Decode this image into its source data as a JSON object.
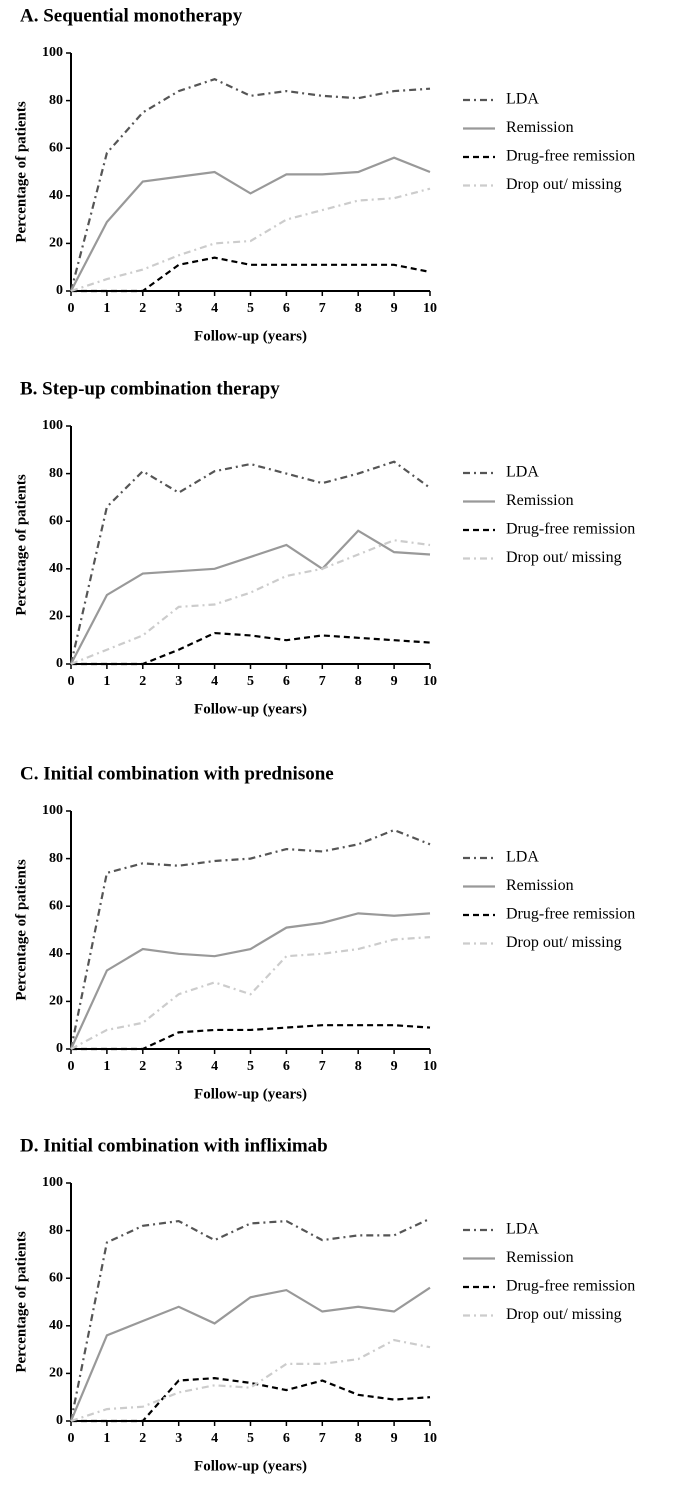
{
  "chart_data": [
    {
      "type": "line",
      "title": "A. Sequential monotherapy",
      "x_label": "Follow-up (years)",
      "y_label": "Percentage of patients",
      "x": [
        0,
        1,
        2,
        3,
        4,
        5,
        6,
        7,
        8,
        9,
        10
      ],
      "xlim": [
        0,
        10
      ],
      "xticks": [
        0,
        1,
        2,
        3,
        4,
        5,
        6,
        7,
        8,
        9,
        10
      ],
      "ylim": [
        0,
        100
      ],
      "yticks": [
        0,
        20,
        40,
        60,
        80,
        100
      ],
      "series": [
        {
          "name": "LDA",
          "color": "#555555",
          "dash": "dash-dot",
          "values": [
            0,
            58,
            75,
            84,
            89,
            82,
            84,
            82,
            81,
            84,
            85
          ]
        },
        {
          "name": "Remission",
          "color": "#999999",
          "dash": "solid",
          "values": [
            0,
            29,
            46,
            48,
            50,
            41,
            49,
            49,
            50,
            56,
            50
          ]
        },
        {
          "name": "Drug-free remission",
          "color": "#000000",
          "dash": "dash",
          "values": [
            0,
            0,
            0,
            11,
            14,
            11,
            11,
            11,
            11,
            11,
            8
          ]
        },
        {
          "name": "Drop out/ missing",
          "color": "#cccccc",
          "dash": "dash-dot",
          "values": [
            0,
            5,
            9,
            15,
            20,
            21,
            30,
            34,
            38,
            39,
            43
          ]
        }
      ]
    },
    {
      "type": "line",
      "title": "B. Step-up combination therapy",
      "x_label": "Follow-up (years)",
      "y_label": "Percentage of patients",
      "x": [
        0,
        1,
        2,
        3,
        4,
        5,
        6,
        7,
        8,
        9,
        10
      ],
      "xlim": [
        0,
        10
      ],
      "xticks": [
        0,
        1,
        2,
        3,
        4,
        5,
        6,
        7,
        8,
        9,
        10
      ],
      "ylim": [
        0,
        100
      ],
      "yticks": [
        0,
        20,
        40,
        60,
        80,
        100
      ],
      "series": [
        {
          "name": "LDA",
          "color": "#555555",
          "dash": "dash-dot",
          "values": [
            0,
            66,
            81,
            72,
            81,
            84,
            80,
            76,
            80,
            85,
            74
          ]
        },
        {
          "name": "Remission",
          "color": "#999999",
          "dash": "solid",
          "values": [
            0,
            29,
            38,
            39,
            40,
            45,
            50,
            40,
            56,
            47,
            46
          ]
        },
        {
          "name": "Drug-free remission",
          "color": "#000000",
          "dash": "dash",
          "values": [
            0,
            0,
            0,
            6,
            13,
            12,
            10,
            12,
            11,
            10,
            9
          ]
        },
        {
          "name": "Drop out/ missing",
          "color": "#cccccc",
          "dash": "dash-dot",
          "values": [
            0,
            6,
            12,
            24,
            25,
            30,
            37,
            40,
            46,
            52,
            50
          ]
        }
      ]
    },
    {
      "type": "line",
      "title": "C. Initial combination with prednisone",
      "x_label": "Follow-up (years)",
      "y_label": "Percentage of patients",
      "x": [
        0,
        1,
        2,
        3,
        4,
        5,
        6,
        7,
        8,
        9,
        10
      ],
      "xlim": [
        0,
        10
      ],
      "xticks": [
        0,
        1,
        2,
        3,
        4,
        5,
        6,
        7,
        8,
        9,
        10
      ],
      "ylim": [
        0,
        100
      ],
      "yticks": [
        0,
        20,
        40,
        60,
        80,
        100
      ],
      "series": [
        {
          "name": "LDA",
          "color": "#555555",
          "dash": "dash-dot",
          "values": [
            0,
            74,
            78,
            77,
            79,
            80,
            84,
            83,
            86,
            92,
            86
          ]
        },
        {
          "name": "Remission",
          "color": "#999999",
          "dash": "solid",
          "values": [
            0,
            33,
            42,
            40,
            39,
            42,
            51,
            53,
            57,
            56,
            57
          ]
        },
        {
          "name": "Drug-free remission",
          "color": "#000000",
          "dash": "dash",
          "values": [
            0,
            0,
            0,
            7,
            8,
            8,
            9,
            10,
            10,
            10,
            9
          ]
        },
        {
          "name": "Drop out/ missing",
          "color": "#cccccc",
          "dash": "dash-dot",
          "values": [
            0,
            8,
            11,
            23,
            28,
            23,
            39,
            40,
            42,
            46,
            47
          ]
        }
      ]
    },
    {
      "type": "line",
      "title": "D. Initial combination with infliximab",
      "x_label": "Follow-up (years)",
      "y_label": "Percentage of patients",
      "x": [
        0,
        1,
        2,
        3,
        4,
        5,
        6,
        7,
        8,
        9,
        10
      ],
      "xlim": [
        0,
        10
      ],
      "xticks": [
        0,
        1,
        2,
        3,
        4,
        5,
        6,
        7,
        8,
        9,
        10
      ],
      "ylim": [
        0,
        100
      ],
      "yticks": [
        0,
        20,
        40,
        60,
        80,
        100
      ],
      "series": [
        {
          "name": "LDA",
          "color": "#555555",
          "dash": "dash-dot",
          "values": [
            0,
            75,
            82,
            84,
            76,
            83,
            84,
            76,
            78,
            78,
            85
          ]
        },
        {
          "name": "Remission",
          "color": "#999999",
          "dash": "solid",
          "values": [
            0,
            36,
            42,
            48,
            41,
            52,
            55,
            46,
            48,
            46,
            56
          ]
        },
        {
          "name": "Drug-free remission",
          "color": "#000000",
          "dash": "dash",
          "values": [
            0,
            0,
            0,
            17,
            18,
            16,
            13,
            17,
            11,
            9,
            10
          ]
        },
        {
          "name": "Drop out/ missing",
          "color": "#cccccc",
          "dash": "dash-dot",
          "values": [
            0,
            5,
            6,
            12,
            15,
            14,
            24,
            24,
            26,
            34,
            31
          ]
        }
      ]
    }
  ]
}
